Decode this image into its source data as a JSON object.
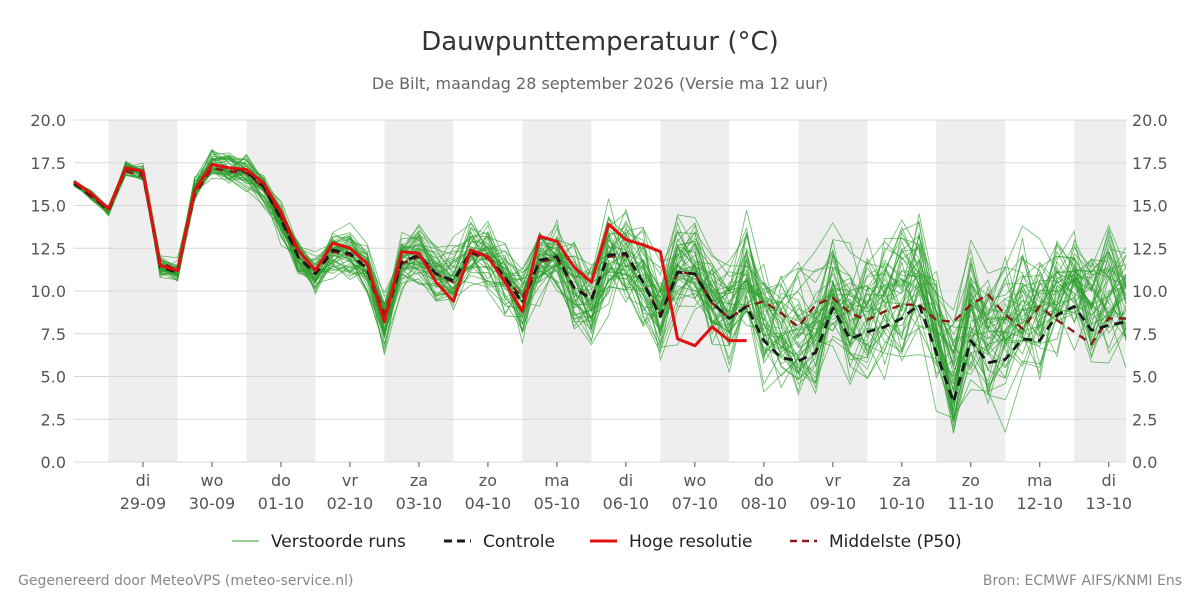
{
  "footer": {
    "left": "Gegenereerd door MeteoVPS (meteo-service.nl)",
    "right": "Bron: ECMWF AIFS/KNMI Ens"
  },
  "chart_data": {
    "type": "line",
    "title": "Dauwpunttemperatuur (°C)",
    "subtitle": "De Bilt, maandag 28 september 2026 (Versie ma 12 uur)",
    "ylim": [
      0,
      20
    ],
    "y_ticks": [
      "0.0",
      "2.5",
      "5.0",
      "7.5",
      "10.0",
      "12.5",
      "15.0",
      "17.5",
      "20.0"
    ],
    "x_axis": {
      "start": "2026-09-28T12:00",
      "end": "2026-10-13T18:00",
      "tick_dates": [
        "2026-09-29",
        "2026-09-30",
        "2026-10-01",
        "2026-10-02",
        "2026-10-03",
        "2026-10-04",
        "2026-10-05",
        "2026-10-06",
        "2026-10-07",
        "2026-10-08",
        "2026-10-09",
        "2026-10-10",
        "2026-10-11",
        "2026-10-12",
        "2026-10-13"
      ],
      "tick_labels": [
        [
          "di",
          "29-09"
        ],
        [
          "wo",
          "30-09"
        ],
        [
          "do",
          "01-10"
        ],
        [
          "vr",
          "02-10"
        ],
        [
          "za",
          "03-10"
        ],
        [
          "zo",
          "04-10"
        ],
        [
          "ma",
          "05-10"
        ],
        [
          "di",
          "06-10"
        ],
        [
          "wo",
          "07-10"
        ],
        [
          "do",
          "08-10"
        ],
        [
          "vr",
          "09-10"
        ],
        [
          "za",
          "10-10"
        ],
        [
          "zo",
          "11-10"
        ],
        [
          "ma",
          "12-10"
        ],
        [
          "di",
          "13-10"
        ]
      ],
      "shaded_days": [
        "2026-09-29",
        "2026-10-01",
        "2026-10-03",
        "2026-10-05",
        "2026-10-07",
        "2026-10-09",
        "2026-10-11",
        "2026-10-13"
      ]
    },
    "grid": true,
    "legend_position": "bottom",
    "times": [
      "2026-09-28T12:00",
      "2026-09-28T18:00",
      "2026-09-29T00:00",
      "2026-09-29T06:00",
      "2026-09-29T12:00",
      "2026-09-29T18:00",
      "2026-09-30T00:00",
      "2026-09-30T06:00",
      "2026-09-30T12:00",
      "2026-09-30T18:00",
      "2026-10-01T00:00",
      "2026-10-01T06:00",
      "2026-10-01T12:00",
      "2026-10-01T18:00",
      "2026-10-02T00:00",
      "2026-10-02T06:00",
      "2026-10-02T12:00",
      "2026-10-02T18:00",
      "2026-10-03T00:00",
      "2026-10-03T06:00",
      "2026-10-03T12:00",
      "2026-10-03T18:00",
      "2026-10-04T00:00",
      "2026-10-04T06:00",
      "2026-10-04T12:00",
      "2026-10-04T18:00",
      "2026-10-05T00:00",
      "2026-10-05T06:00",
      "2026-10-05T12:00",
      "2026-10-05T18:00",
      "2026-10-06T00:00",
      "2026-10-06T06:00",
      "2026-10-06T12:00",
      "2026-10-06T18:00",
      "2026-10-07T00:00",
      "2026-10-07T06:00",
      "2026-10-07T12:00",
      "2026-10-07T18:00",
      "2026-10-08T00:00",
      "2026-10-08T06:00",
      "2026-10-08T12:00",
      "2026-10-08T18:00",
      "2026-10-09T00:00",
      "2026-10-09T06:00",
      "2026-10-09T12:00",
      "2026-10-09T18:00",
      "2026-10-10T00:00",
      "2026-10-10T06:00",
      "2026-10-10T12:00",
      "2026-10-10T18:00",
      "2026-10-11T00:00",
      "2026-10-11T06:00",
      "2026-10-11T12:00",
      "2026-10-11T18:00",
      "2026-10-12T00:00",
      "2026-10-12T06:00",
      "2026-10-12T12:00",
      "2026-10-12T18:00",
      "2026-10-13T00:00",
      "2026-10-13T06:00",
      "2026-10-13T12:00",
      "2026-10-13T18:00"
    ],
    "series": [
      {
        "name": "Controle",
        "color": "#1a1a1a",
        "values": [
          16.3,
          15.6,
          14.7,
          17.2,
          16.9,
          11.4,
          11.1,
          15.9,
          17.4,
          17.2,
          17.0,
          16.1,
          14.2,
          12.0,
          11.0,
          12.4,
          12.2,
          11.3,
          8.3,
          11.7,
          12.1,
          11.0,
          10.6,
          12.3,
          12.0,
          10.8,
          9.3,
          11.8,
          12.0,
          10.2,
          9.5,
          12.1,
          12.2,
          10.5,
          8.5,
          11.1,
          11.0,
          9.3,
          8.4,
          9.1,
          7.1,
          6.1,
          5.9,
          6.4,
          9.0,
          7.2,
          7.6,
          7.9,
          8.4,
          9.2,
          6.4,
          3.5,
          7.1,
          5.8,
          6.0,
          7.2,
          7.1,
          8.6,
          9.1,
          7.7,
          8.0,
          8.2
        ]
      },
      {
        "name": "Hoge resolutie",
        "color": "#e01010",
        "values": [
          16.4,
          15.7,
          14.8,
          17.2,
          17.0,
          11.5,
          11.2,
          15.9,
          17.4,
          17.2,
          17.1,
          16.3,
          14.6,
          12.4,
          11.2,
          12.8,
          12.5,
          11.6,
          8.2,
          12.3,
          12.2,
          10.5,
          9.4,
          12.4,
          12.0,
          10.5,
          8.8,
          13.2,
          12.9,
          11.4,
          10.5,
          13.9,
          13.0,
          12.7,
          12.3,
          7.2,
          6.8,
          7.9,
          7.1,
          7.1
        ]
      },
      {
        "name": "Middelste (P50)",
        "color": "#8b1a1a",
        "values": [
          16.3,
          15.5,
          14.8,
          17.0,
          16.7,
          11.7,
          11.2,
          15.6,
          17.2,
          17.0,
          16.9,
          16.0,
          14.3,
          12.0,
          11.0,
          12.3,
          12.1,
          11.3,
          8.7,
          11.6,
          12.0,
          11.0,
          10.5,
          12.2,
          11.9,
          10.8,
          9.6,
          11.7,
          11.9,
          10.2,
          9.6,
          12.0,
          12.1,
          10.5,
          8.6,
          11.1,
          11.0,
          9.3,
          8.4,
          9.1,
          9.4,
          8.7,
          7.9,
          9.2,
          9.6,
          8.7,
          8.3,
          8.8,
          9.2,
          9.2,
          8.3,
          8.2,
          9.2,
          9.8,
          8.6,
          7.8,
          9.1,
          8.3,
          7.6,
          6.9,
          8.4,
          8.4
        ]
      }
    ],
    "ensemble": {
      "name": "Verstoorde runs",
      "color": "#2e9e2e"
    },
    "legend": [
      "Verstoorde runs",
      "Controle",
      "Hoge resolutie",
      "Middelste (P50)"
    ]
  }
}
